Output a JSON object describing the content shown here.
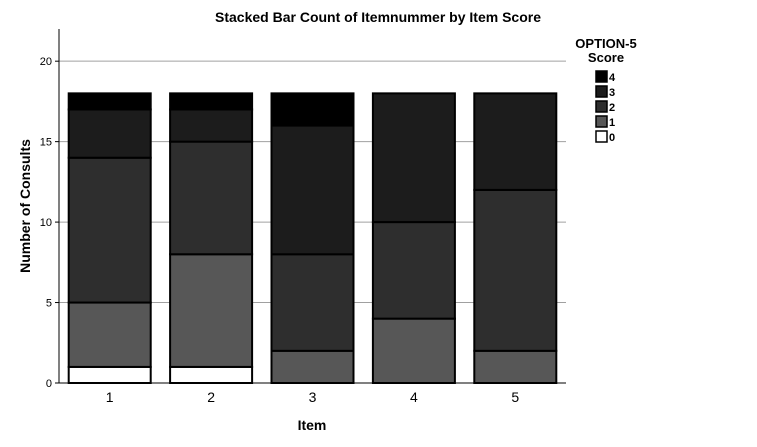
{
  "chart_data": {
    "type": "bar",
    "stacked": true,
    "title": "Stacked Bar Count of Itemnummer by Item Score",
    "xlabel": "Item",
    "ylabel": "Number of Consults",
    "categories": [
      "1",
      "2",
      "3",
      "4",
      "5"
    ],
    "ylim": [
      0,
      22
    ],
    "yticks": [
      0,
      5,
      10,
      15,
      20
    ],
    "grid": true,
    "legend": {
      "title_line1": "OPTION-5",
      "title_line2": "Score",
      "placement": "top-right"
    },
    "series": [
      {
        "name": "0",
        "color": "#ffffff",
        "values": [
          1,
          1,
          0,
          0,
          0
        ]
      },
      {
        "name": "1",
        "color": "#575757",
        "values": [
          4,
          7,
          2,
          4,
          2
        ]
      },
      {
        "name": "2",
        "color": "#2e2e2e",
        "values": [
          9,
          7,
          6,
          6,
          10
        ]
      },
      {
        "name": "3",
        "color": "#1c1c1c",
        "values": [
          3,
          2,
          8,
          8,
          6
        ]
      },
      {
        "name": "4",
        "color": "#000000",
        "values": [
          1,
          1,
          2,
          0,
          0
        ]
      }
    ]
  }
}
